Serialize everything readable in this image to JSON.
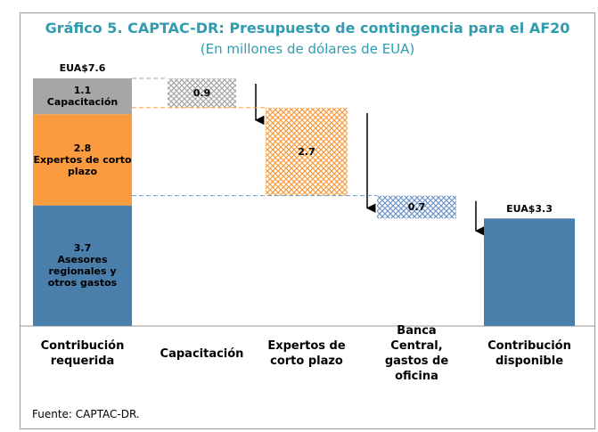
{
  "chart_data": {
    "type": "waterfall",
    "title": "Gráfico 5. CAPTAC-DR: Presupuesto de contingencia para el AF20",
    "subtitle": "(En millones de dólares de EUA)",
    "categories": [
      "Contribución requerida",
      "Capacitación",
      "Expertos de corto plazo",
      "Banca Central, gastos de oficina",
      "Contribución disponible"
    ],
    "start": {
      "total": 7.6,
      "total_label": "EUA$7.6",
      "segments": [
        {
          "name": "Asesores regionales y otros gastos",
          "value": 3.7,
          "color": "#4a7eab"
        },
        {
          "name": "Expertos de corto plazo",
          "value": 2.8,
          "color": "#f99b3e"
        },
        {
          "name": "Capacitación",
          "value": 1.1,
          "color": "#a6a6a6"
        }
      ]
    },
    "decrements": [
      {
        "value": 0.9,
        "color": "#a6a6a6"
      },
      {
        "value": 2.7,
        "color": "#f99b3e"
      },
      {
        "value": 0.7,
        "color": "#6f95c8"
      }
    ],
    "end": {
      "value": 3.3,
      "value_label": "EUA$3.3",
      "color": "#4a7eab"
    },
    "source": "Fuente: CAPTAC-DR."
  }
}
